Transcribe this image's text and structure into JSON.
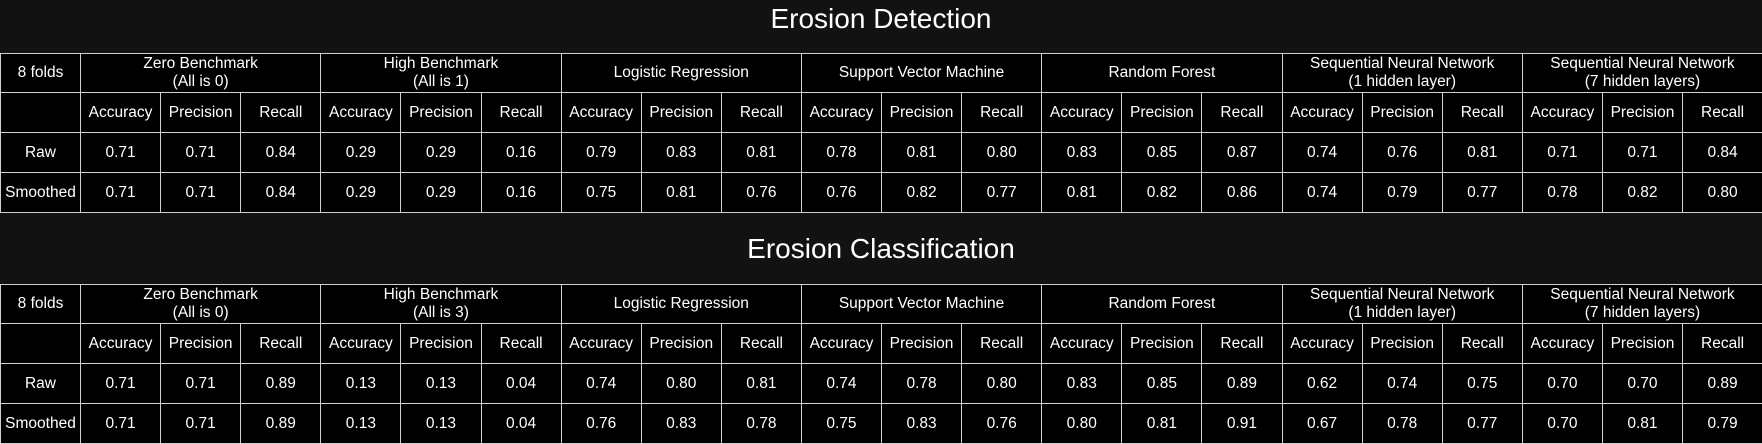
{
  "sections": [
    {
      "title": "Erosion Detection",
      "corner_label": "8 folds",
      "models": [
        {
          "line1": "Zero Benchmark",
          "line2": "(All is 0)"
        },
        {
          "line1": "High Benchmark",
          "line2": "(All is 1)"
        },
        {
          "line1": "Logistic Regression",
          "line2": ""
        },
        {
          "line1": "Support Vector Machine",
          "line2": ""
        },
        {
          "line1": "Random Forest",
          "line2": ""
        },
        {
          "line1": "Sequential Neural Network",
          "line2": "(1 hidden layer)"
        },
        {
          "line1": "Sequential Neural Network",
          "line2": "(7 hidden layers)"
        }
      ],
      "metric_labels": [
        "Accuracy",
        "Precision",
        "Recall"
      ],
      "rows": [
        {
          "label": "Raw",
          "values": [
            "0.71",
            "0.71",
            "0.84",
            "0.29",
            "0.29",
            "0.16",
            "0.79",
            "0.83",
            "0.81",
            "0.78",
            "0.81",
            "0.80",
            "0.83",
            "0.85",
            "0.87",
            "0.74",
            "0.76",
            "0.81",
            "0.71",
            "0.71",
            "0.84"
          ]
        },
        {
          "label": "Smoothed",
          "values": [
            "0.71",
            "0.71",
            "0.84",
            "0.29",
            "0.29",
            "0.16",
            "0.75",
            "0.81",
            "0.76",
            "0.76",
            "0.82",
            "0.77",
            "0.81",
            "0.82",
            "0.86",
            "0.74",
            "0.79",
            "0.77",
            "0.78",
            "0.82",
            "0.80"
          ]
        }
      ]
    },
    {
      "title": "Erosion Classification",
      "corner_label": "8 folds",
      "models": [
        {
          "line1": "Zero Benchmark",
          "line2": "(All is 0)"
        },
        {
          "line1": "High Benchmark",
          "line2": "(All is 3)"
        },
        {
          "line1": "Logistic Regression",
          "line2": ""
        },
        {
          "line1": "Support Vector Machine",
          "line2": ""
        },
        {
          "line1": "Random Forest",
          "line2": ""
        },
        {
          "line1": "Sequential Neural Network",
          "line2": "(1 hidden layer)"
        },
        {
          "line1": "Sequential Neural Network",
          "line2": "(7 hidden layers)"
        }
      ],
      "metric_labels": [
        "Accuracy",
        "Precision",
        "Recall"
      ],
      "rows": [
        {
          "label": "Raw",
          "values": [
            "0.71",
            "0.71",
            "0.89",
            "0.13",
            "0.13",
            "0.04",
            "0.74",
            "0.80",
            "0.81",
            "0.74",
            "0.78",
            "0.80",
            "0.83",
            "0.85",
            "0.89",
            "0.62",
            "0.74",
            "0.75",
            "0.70",
            "0.70",
            "0.89"
          ]
        },
        {
          "label": "Smoothed",
          "values": [
            "0.71",
            "0.71",
            "0.89",
            "0.13",
            "0.13",
            "0.04",
            "0.76",
            "0.83",
            "0.78",
            "0.75",
            "0.83",
            "0.76",
            "0.80",
            "0.81",
            "0.91",
            "0.67",
            "0.78",
            "0.77",
            "0.70",
            "0.81",
            "0.79"
          ]
        }
      ]
    }
  ],
  "colors": {
    "page_background": "#121212",
    "table_background": "#000000",
    "text": "#ffffff",
    "border": "#d0d0d0"
  }
}
